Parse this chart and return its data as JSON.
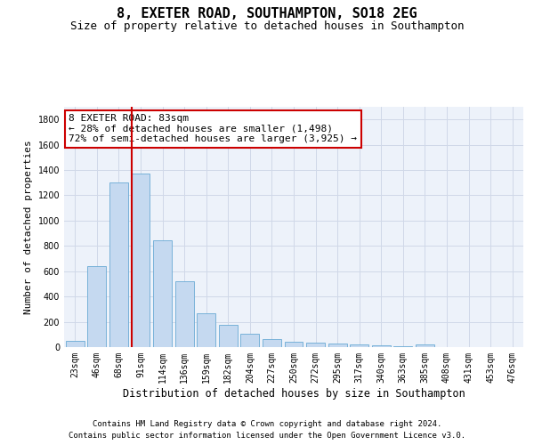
{
  "title": "8, EXETER ROAD, SOUTHAMPTON, SO18 2EG",
  "subtitle": "Size of property relative to detached houses in Southampton",
  "xlabel": "Distribution of detached houses by size in Southampton",
  "ylabel": "Number of detached properties",
  "categories": [
    "23sqm",
    "46sqm",
    "68sqm",
    "91sqm",
    "114sqm",
    "136sqm",
    "159sqm",
    "182sqm",
    "204sqm",
    "227sqm",
    "250sqm",
    "272sqm",
    "295sqm",
    "317sqm",
    "340sqm",
    "363sqm",
    "385sqm",
    "408sqm",
    "431sqm",
    "453sqm",
    "476sqm"
  ],
  "values": [
    50,
    640,
    1300,
    1370,
    845,
    520,
    270,
    175,
    105,
    65,
    40,
    38,
    30,
    20,
    15,
    5,
    20,
    0,
    0,
    0,
    0
  ],
  "bar_color": "#c5d9f0",
  "bar_edge_color": "#6aaad4",
  "vline_color": "#cc0000",
  "vline_x_index": 3,
  "annotation_line1": "8 EXETER ROAD: 83sqm",
  "annotation_line2": "← 28% of detached houses are smaller (1,498)",
  "annotation_line3": "72% of semi-detached houses are larger (3,925) →",
  "annotation_box_color": "#cc0000",
  "ylim": [
    0,
    1900
  ],
  "yticks": [
    0,
    200,
    400,
    600,
    800,
    1000,
    1200,
    1400,
    1600,
    1800
  ],
  "grid_color": "#d0d8e8",
  "bg_color": "#edf2fa",
  "footer_line1": "Contains HM Land Registry data © Crown copyright and database right 2024.",
  "footer_line2": "Contains public sector information licensed under the Open Government Licence v3.0.",
  "title_fontsize": 11,
  "subtitle_fontsize": 9,
  "xlabel_fontsize": 8.5,
  "ylabel_fontsize": 8,
  "tick_fontsize": 7,
  "footer_fontsize": 6.5,
  "annotation_fontsize": 8
}
